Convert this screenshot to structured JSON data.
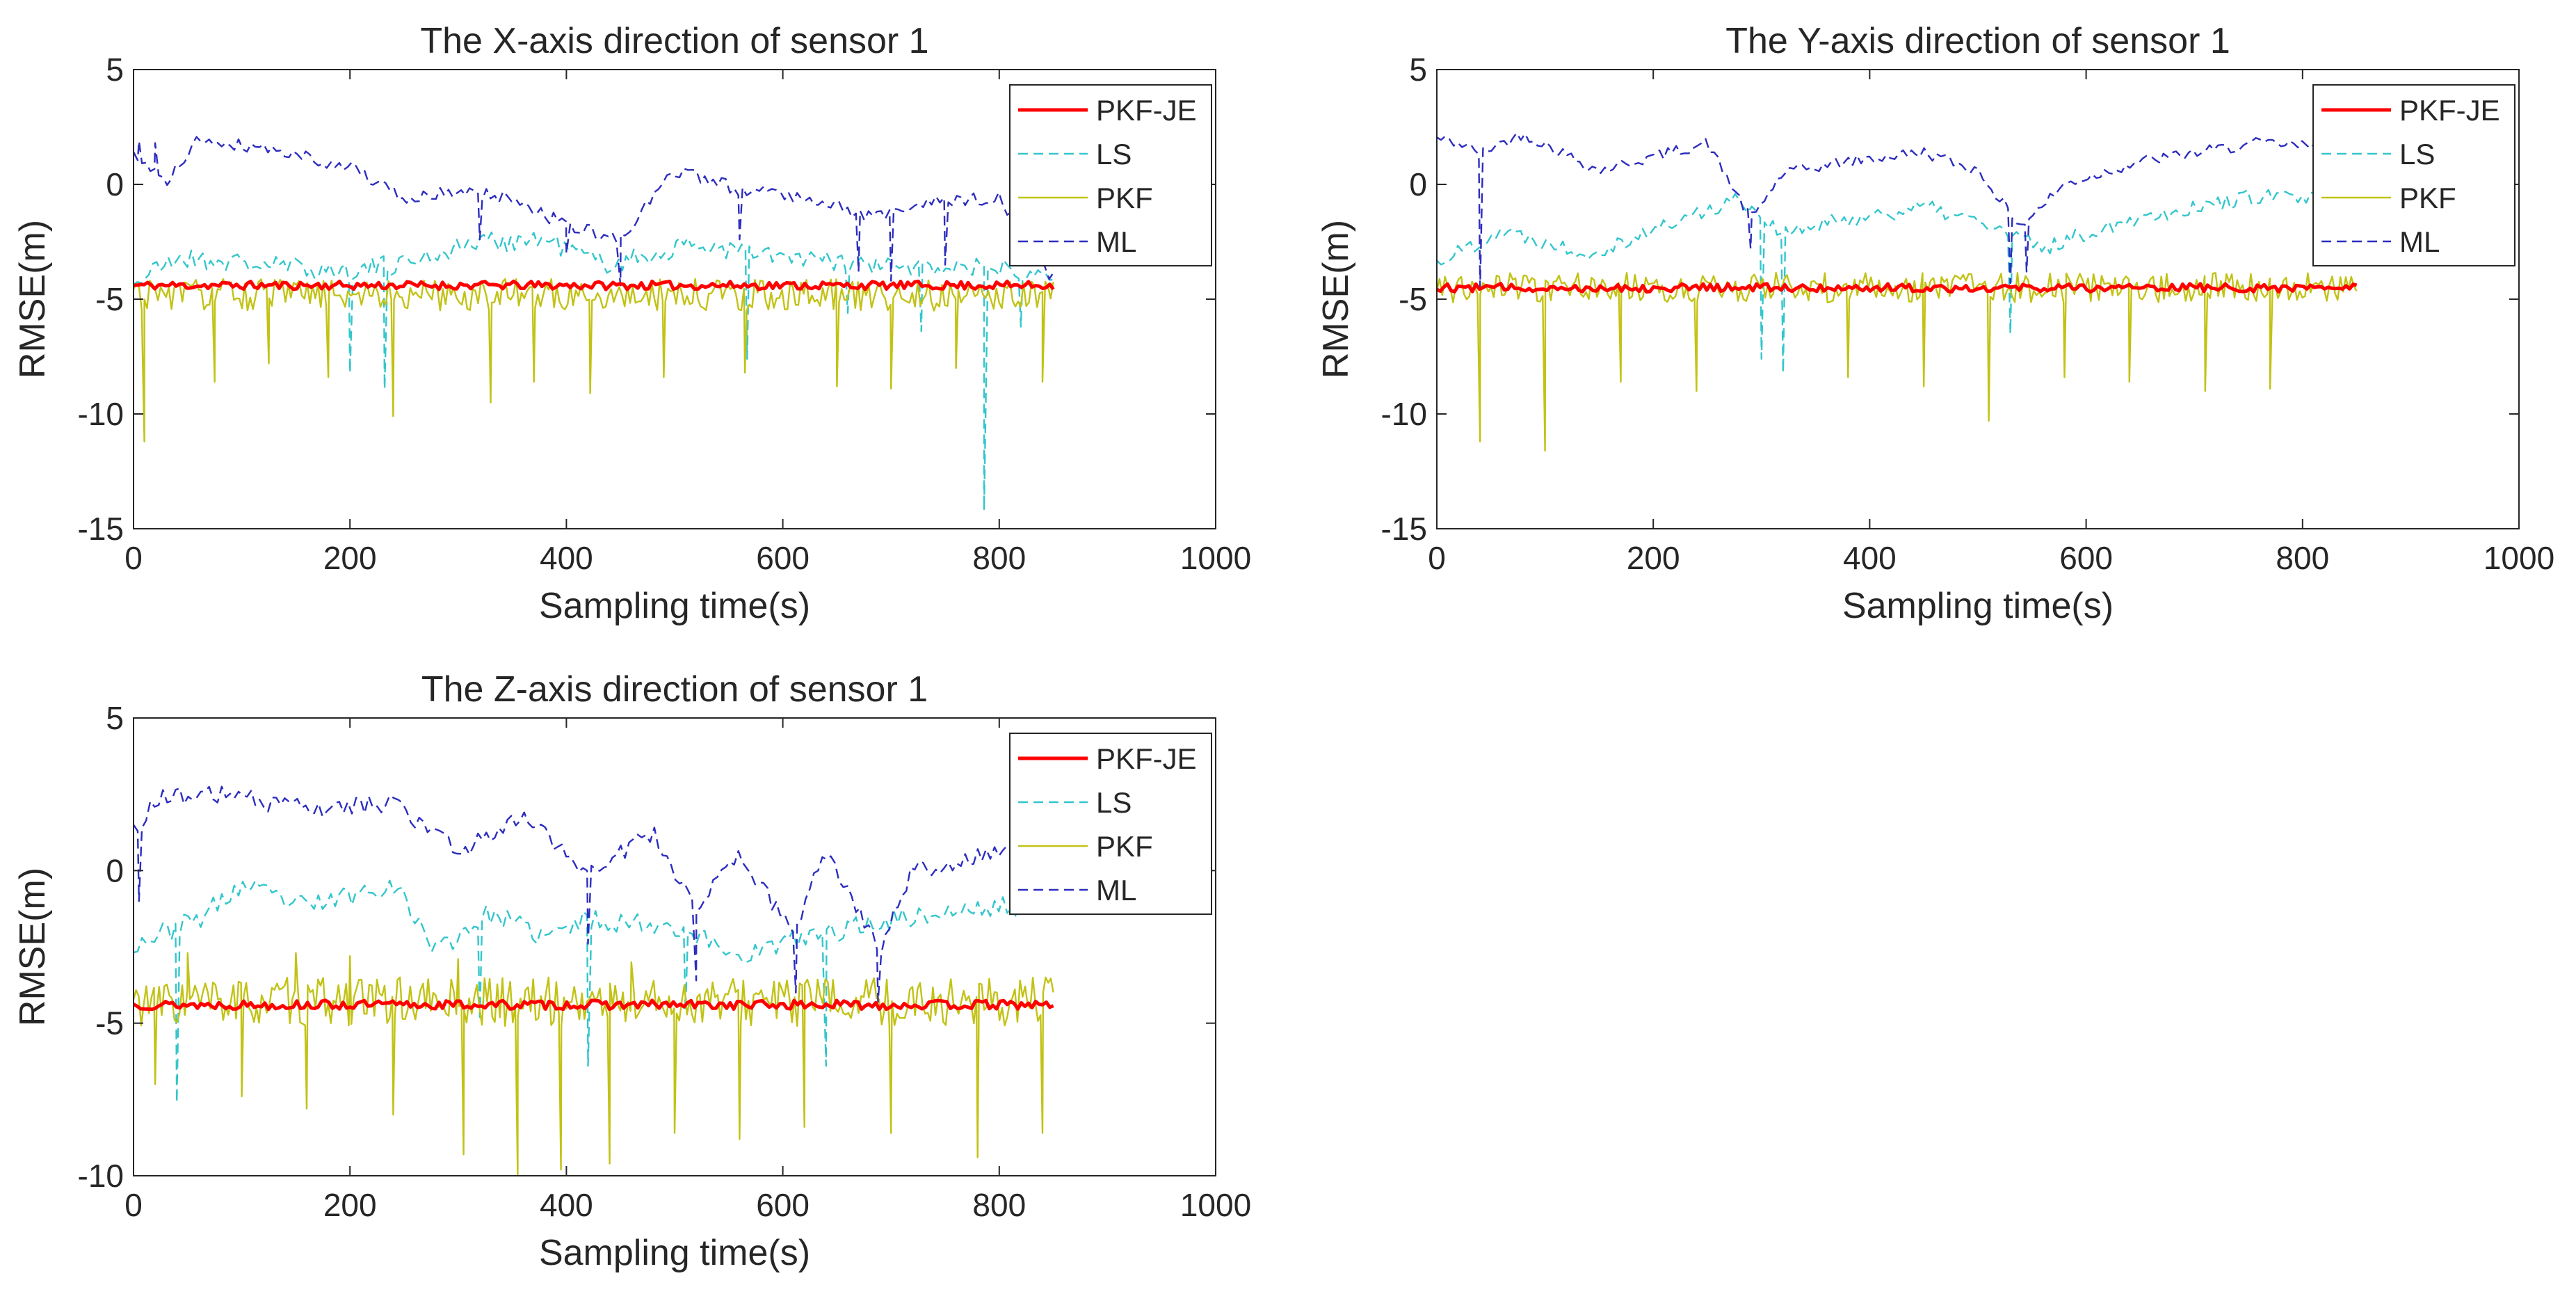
{
  "figure": {
    "background": "#ffffff"
  },
  "chart_data": [
    {
      "type": "line",
      "title": "The X-axis direction of sensor 1",
      "xlabel": "Sampling time(s)",
      "ylabel": "RMSE(m)",
      "xlim": [
        0,
        1000
      ],
      "ylim": [
        -15,
        5
      ],
      "xticks": [
        0,
        200,
        400,
        600,
        800,
        1000
      ],
      "yticks": [
        -15,
        -10,
        -5,
        0,
        5
      ],
      "grid": false,
      "legend_position": "top-right",
      "series": [
        {
          "name": "PKF-JE",
          "color": "#ff0000",
          "style": "solid",
          "width": 5,
          "seed": 11,
          "base": [
            [
              0,
              -4.4
            ],
            [
              850,
              -4.4
            ]
          ],
          "noise": 0.18,
          "spikes": [],
          "dips": [],
          "n": 260
        },
        {
          "name": "LS",
          "color": "#33c6cc",
          "style": "dashed",
          "width": 2.4,
          "seed": 21,
          "base": [
            [
              0,
              -4.3
            ],
            [
              40,
              -3.2
            ],
            [
              120,
              -3.5
            ],
            [
              200,
              -3.8
            ],
            [
              250,
              -3.4
            ],
            [
              320,
              -2.5
            ],
            [
              380,
              -2.4
            ],
            [
              440,
              -3.5
            ],
            [
              520,
              -2.6
            ],
            [
              600,
              -3.2
            ],
            [
              700,
              -3.6
            ],
            [
              800,
              -3.6
            ],
            [
              850,
              -3.8
            ]
          ],
          "noise": 0.45,
          "spikes": [],
          "dips": [
            [
              200,
              -8.2
            ],
            [
              232,
              -8.9
            ],
            [
              567,
              -7.6
            ],
            [
              660,
              -5.6
            ],
            [
              728,
              -6.4
            ],
            [
              786,
              -14.2
            ],
            [
              820,
              -6.2
            ]
          ],
          "n": 240
        },
        {
          "name": "PKF",
          "color": "#c2c215",
          "style": "solid",
          "width": 2.4,
          "seed": 31,
          "base": [
            [
              0,
              -4.8
            ],
            [
              850,
              -4.8
            ]
          ],
          "noise": 0.7,
          "spikes": [],
          "dips": [
            [
              10,
              -11.2
            ],
            [
              75,
              -8.6
            ],
            [
              125,
              -7.8
            ],
            [
              180,
              -8.4
            ],
            [
              240,
              -10.1
            ],
            [
              330,
              -9.5
            ],
            [
              370,
              -8.6
            ],
            [
              422,
              -9.1
            ],
            [
              490,
              -8.4
            ],
            [
              565,
              -8.2
            ],
            [
              650,
              -8.8
            ],
            [
              700,
              -8.9
            ],
            [
              760,
              -8.0
            ],
            [
              840,
              -8.6
            ]
          ],
          "n": 340
        },
        {
          "name": "ML",
          "color": "#2d2dbf",
          "style": "dashed",
          "width": 2.4,
          "seed": 41,
          "base": [
            [
              0,
              1.2
            ],
            [
              30,
              0.0
            ],
            [
              60,
              2.0
            ],
            [
              120,
              1.6
            ],
            [
              200,
              0.8
            ],
            [
              250,
              -0.7
            ],
            [
              300,
              -0.3
            ],
            [
              350,
              -0.6
            ],
            [
              400,
              -1.8
            ],
            [
              450,
              -2.4
            ],
            [
              500,
              0.6
            ],
            [
              560,
              -0.2
            ],
            [
              620,
              -0.5
            ],
            [
              680,
              -1.4
            ],
            [
              740,
              -0.8
            ],
            [
              800,
              -0.6
            ],
            [
              850,
              -4.1
            ]
          ],
          "noise": 0.3,
          "spikes": [
            [
              5,
              1.9
            ],
            [
              20,
              1.8
            ]
          ],
          "dips": [
            [
              20,
              -2.2
            ],
            [
              320,
              -2.4
            ],
            [
              400,
              -3.0
            ],
            [
              450,
              -4.4
            ],
            [
              560,
              -2.4
            ],
            [
              670,
              -3.8
            ],
            [
              700,
              -4.2
            ],
            [
              750,
              -3.5
            ]
          ],
          "n": 220
        }
      ]
    },
    {
      "type": "line",
      "title": "The Y-axis direction of sensor 1",
      "xlabel": "Sampling time(s)",
      "ylabel": "RMSE(m)",
      "xlim": [
        0,
        1000
      ],
      "ylim": [
        -15,
        5
      ],
      "xticks": [
        0,
        200,
        400,
        600,
        800,
        1000
      ],
      "yticks": [
        -15,
        -10,
        -5,
        0,
        5
      ],
      "grid": false,
      "legend_position": "top-right",
      "series": [
        {
          "name": "PKF-JE",
          "color": "#ff0000",
          "style": "solid",
          "width": 5,
          "seed": 12,
          "base": [
            [
              0,
              -4.5
            ],
            [
              850,
              -4.5
            ]
          ],
          "noise": 0.18,
          "spikes": [],
          "dips": [],
          "n": 260
        },
        {
          "name": "LS",
          "color": "#33c6cc",
          "style": "dashed",
          "width": 2.4,
          "seed": 22,
          "base": [
            [
              0,
              -3.4
            ],
            [
              60,
              -2.0
            ],
            [
              140,
              -3.0
            ],
            [
              200,
              -2.0
            ],
            [
              280,
              -0.6
            ],
            [
              320,
              -2.2
            ],
            [
              380,
              -1.5
            ],
            [
              450,
              -1.0
            ],
            [
              500,
              -1.6
            ],
            [
              560,
              -2.8
            ],
            [
              640,
              -1.5
            ],
            [
              760,
              -0.5
            ],
            [
              850,
              -0.8
            ]
          ],
          "noise": 0.35,
          "spikes": [],
          "dips": [
            [
              300,
              -7.6
            ],
            [
              320,
              -8.2
            ],
            [
              530,
              -6.5
            ]
          ],
          "n": 220
        },
        {
          "name": "PKF",
          "color": "#c2c215",
          "style": "solid",
          "width": 2.4,
          "seed": 32,
          "base": [
            [
              0,
              -4.5
            ],
            [
              850,
              -4.5
            ]
          ],
          "noise": 0.65,
          "spikes": [],
          "dips": [
            [
              40,
              -11.2
            ],
            [
              100,
              -11.6
            ],
            [
              170,
              -8.6
            ],
            [
              240,
              -9.0
            ],
            [
              380,
              -8.4
            ],
            [
              450,
              -8.8
            ],
            [
              510,
              -10.3
            ],
            [
              580,
              -8.4
            ],
            [
              640,
              -8.6
            ],
            [
              710,
              -9.0
            ],
            [
              770,
              -8.9
            ]
          ],
          "n": 340
        },
        {
          "name": "ML",
          "color": "#2d2dbf",
          "style": "dashed",
          "width": 2.4,
          "seed": 42,
          "base": [
            [
              0,
              2.0
            ],
            [
              20,
              1.8
            ],
            [
              40,
              1.4
            ],
            [
              80,
              2.2
            ],
            [
              150,
              0.6
            ],
            [
              200,
              1.2
            ],
            [
              250,
              1.8
            ],
            [
              290,
              -1.5
            ],
            [
              320,
              0.5
            ],
            [
              380,
              1.0
            ],
            [
              450,
              1.4
            ],
            [
              500,
              0.6
            ],
            [
              540,
              -1.8
            ],
            [
              580,
              0.0
            ],
            [
              650,
              1.0
            ],
            [
              760,
              1.8
            ],
            [
              850,
              1.5
            ]
          ],
          "noise": 0.25,
          "spikes": [],
          "dips": [
            [
              40,
              -4.5
            ],
            [
              290,
              -2.8
            ],
            [
              530,
              -4.3
            ],
            [
              545,
              -3.8
            ]
          ],
          "n": 220
        }
      ]
    },
    {
      "type": "line",
      "title": "The Z-axis direction of sensor 1",
      "xlabel": "Sampling time(s)",
      "ylabel": "RMSE(m)",
      "xlim": [
        0,
        1000
      ],
      "ylim": [
        -10,
        5
      ],
      "xticks": [
        0,
        200,
        400,
        600,
        800,
        1000
      ],
      "yticks": [
        -10,
        -5,
        0,
        5
      ],
      "grid": false,
      "legend_position": "top-right",
      "series": [
        {
          "name": "PKF-JE",
          "color": "#ff0000",
          "style": "solid",
          "width": 5,
          "seed": 13,
          "base": [
            [
              0,
              -4.4
            ],
            [
              850,
              -4.4
            ]
          ],
          "noise": 0.15,
          "spikes": [],
          "dips": [],
          "n": 260
        },
        {
          "name": "LS",
          "color": "#33c6cc",
          "style": "dashed",
          "width": 2.4,
          "seed": 23,
          "base": [
            [
              0,
              -2.4
            ],
            [
              60,
              -1.6
            ],
            [
              100,
              -0.5
            ],
            [
              160,
              -1.2
            ],
            [
              240,
              -0.4
            ],
            [
              280,
              -2.6
            ],
            [
              330,
              -1.4
            ],
            [
              380,
              -2.2
            ],
            [
              420,
              -1.6
            ],
            [
              500,
              -1.8
            ],
            [
              560,
              -2.8
            ],
            [
              620,
              -2.2
            ],
            [
              700,
              -1.6
            ],
            [
              800,
              -1.2
            ],
            [
              850,
              -1.0
            ]
          ],
          "noise": 0.35,
          "spikes": [],
          "dips": [
            [
              40,
              -7.6
            ],
            [
              320,
              -4.8
            ],
            [
              420,
              -6.4
            ],
            [
              510,
              -4.6
            ],
            [
              640,
              -6.4
            ]
          ],
          "n": 220
        },
        {
          "name": "PKF",
          "color": "#c2c215",
          "style": "solid",
          "width": 2.4,
          "seed": 33,
          "base": [
            [
              0,
              -4.3
            ],
            [
              850,
              -4.3
            ]
          ],
          "noise": 0.8,
          "spikes": [
            [
              50,
              -2.7
            ],
            [
              150,
              -2.7
            ],
            [
              200,
              -2.8
            ],
            [
              300,
              -2.9
            ],
            [
              460,
              -3.0
            ]
          ],
          "dips": [
            [
              20,
              -7.0
            ],
            [
              100,
              -7.4
            ],
            [
              160,
              -7.8
            ],
            [
              200,
              -6.9
            ],
            [
              240,
              -8.0
            ],
            [
              305,
              -9.3
            ],
            [
              355,
              -10.0
            ],
            [
              395,
              -9.8
            ],
            [
              440,
              -9.6
            ],
            [
              500,
              -8.6
            ],
            [
              560,
              -8.8
            ],
            [
              620,
              -8.4
            ],
            [
              700,
              -8.6
            ],
            [
              780,
              -9.4
            ],
            [
              840,
              -8.6
            ]
          ],
          "n": 360
        },
        {
          "name": "ML",
          "color": "#2d2dbf",
          "style": "dashed",
          "width": 2.4,
          "seed": 43,
          "base": [
            [
              0,
              1.2
            ],
            [
              20,
              2.4
            ],
            [
              80,
              2.5
            ],
            [
              160,
              2.0
            ],
            [
              240,
              2.2
            ],
            [
              300,
              0.6
            ],
            [
              360,
              1.8
            ],
            [
              420,
              0.0
            ],
            [
              480,
              1.2
            ],
            [
              520,
              -1.2
            ],
            [
              560,
              0.4
            ],
            [
              610,
              -2.0
            ],
            [
              640,
              0.6
            ],
            [
              690,
              -2.6
            ],
            [
              720,
              0.0
            ],
            [
              800,
              0.6
            ],
            [
              850,
              1.0
            ]
          ],
          "noise": 0.3,
          "spikes": [],
          "dips": [
            [
              5,
              -1.0
            ],
            [
              420,
              -2.4
            ],
            [
              520,
              -3.6
            ],
            [
              612,
              -4.0
            ],
            [
              688,
              -4.3
            ]
          ],
          "n": 220
        }
      ]
    }
  ]
}
